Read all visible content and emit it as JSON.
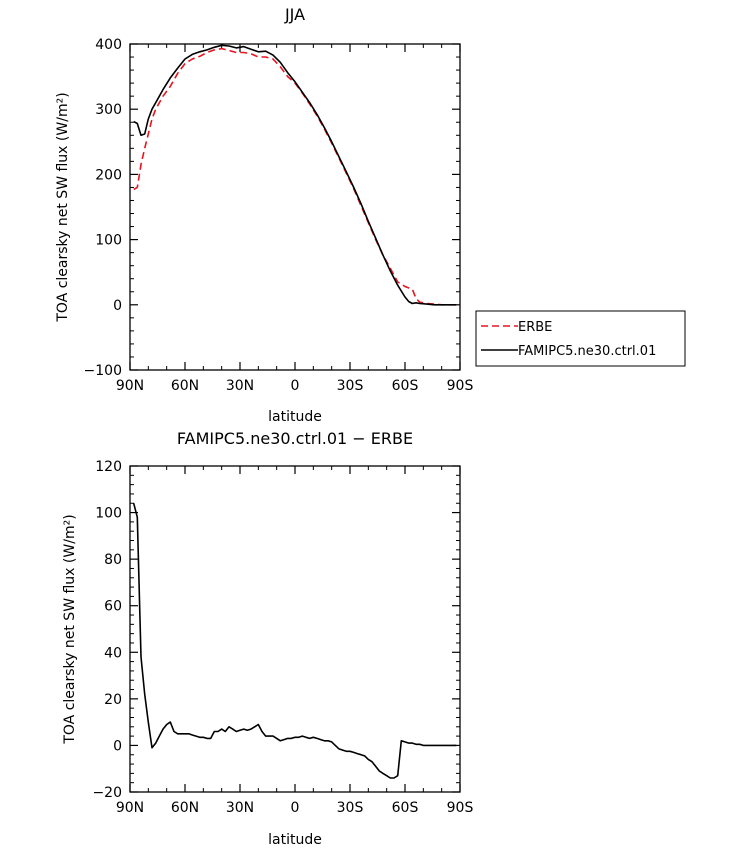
{
  "chart_data": [
    {
      "type": "line",
      "title": "JJA",
      "xlabel": "latitude",
      "ylabel": "TOA clearsky net SW flux (W/m²)",
      "xlim": [
        90,
        -90
      ],
      "ylim": [
        -100,
        400
      ],
      "x_ticks": [
        90,
        60,
        30,
        0,
        -30,
        -60,
        -90
      ],
      "x_tick_labels": [
        "90N",
        "60N",
        "30N",
        "0",
        "30S",
        "60S",
        "90S"
      ],
      "y_ticks": [
        -100,
        0,
        100,
        200,
        300,
        400
      ],
      "y_tick_labels": [
        "−100",
        "0",
        "100",
        "200",
        "300",
        "400"
      ],
      "legend_position": "right",
      "series": [
        {
          "name": "ERBE",
          "color": "#e8141e",
          "dash": "dashed",
          "x": [
            88,
            86,
            84,
            82,
            80,
            78,
            76,
            72,
            68,
            64,
            60,
            56,
            52,
            48,
            44,
            40,
            36,
            32,
            28,
            24,
            20,
            16,
            12,
            8,
            4,
            0,
            -4,
            -8,
            -12,
            -16,
            -20,
            -24,
            -28,
            -32,
            -36,
            -40,
            -44,
            -48,
            -52,
            -56,
            -60,
            -64,
            -66,
            -68,
            -72,
            -76,
            -80,
            -84,
            -88
          ],
          "y": [
            177,
            180,
            215,
            240,
            262,
            285,
            300,
            320,
            335,
            355,
            370,
            377,
            381,
            387,
            391,
            393,
            390,
            387,
            387,
            385,
            380,
            380,
            377,
            365,
            350,
            340,
            325,
            308,
            290,
            270,
            248,
            225,
            202,
            178,
            152,
            126,
            100,
            76,
            56,
            35,
            28,
            24,
            10,
            4,
            2,
            1,
            0,
            0,
            0
          ]
        },
        {
          "name": "FAMIPC5.ne30.ctrl.01",
          "color": "#000000",
          "dash": "solid",
          "x": [
            88,
            86,
            84,
            82,
            80,
            78,
            76,
            72,
            68,
            64,
            60,
            56,
            52,
            48,
            44,
            40,
            36,
            32,
            28,
            24,
            20,
            16,
            12,
            8,
            4,
            0,
            -4,
            -8,
            -12,
            -16,
            -20,
            -24,
            -28,
            -32,
            -36,
            -40,
            -44,
            -48,
            -52,
            -56,
            -60,
            -62,
            -64,
            -66,
            -68,
            -72,
            -76,
            -80,
            -84,
            -88
          ],
          "y": [
            281,
            278,
            260,
            262,
            285,
            300,
            310,
            330,
            348,
            363,
            377,
            384,
            388,
            391,
            395,
            398,
            397,
            394,
            396,
            392,
            388,
            389,
            383,
            372,
            356,
            342,
            326,
            310,
            292,
            272,
            250,
            227,
            204,
            180,
            155,
            128,
            102,
            76,
            52,
            30,
            12,
            5,
            2,
            3,
            2,
            1,
            0,
            0,
            0,
            0
          ]
        }
      ]
    },
    {
      "type": "line",
      "title": "FAMIPC5.ne30.ctrl.01 − ERBE",
      "xlabel": "latitude",
      "ylabel": "TOA clearsky net SW flux (W/m²)",
      "xlim": [
        90,
        -90
      ],
      "ylim": [
        -20,
        120
      ],
      "x_ticks": [
        90,
        60,
        30,
        0,
        -30,
        -60,
        -90
      ],
      "x_tick_labels": [
        "90N",
        "60N",
        "30N",
        "0",
        "30S",
        "60S",
        "90S"
      ],
      "y_ticks": [
        -20,
        0,
        20,
        40,
        60,
        80,
        100,
        120
      ],
      "y_tick_labels": [
        "−20",
        "0",
        "20",
        "40",
        "60",
        "80",
        "100",
        "120"
      ],
      "series": [
        {
          "color": "#000000",
          "dash": "solid",
          "x": [
            88,
            86,
            84,
            82,
            80,
            78,
            76,
            74,
            72,
            70,
            68,
            66,
            64,
            62,
            60,
            58,
            56,
            54,
            52,
            50,
            48,
            46,
            44,
            42,
            40,
            38,
            36,
            34,
            32,
            30,
            28,
            26,
            24,
            22,
            20,
            18,
            16,
            14,
            12,
            10,
            8,
            6,
            4,
            2,
            0,
            -2,
            -4,
            -6,
            -8,
            -10,
            -12,
            -14,
            -16,
            -18,
            -20,
            -22,
            -24,
            -26,
            -28,
            -30,
            -32,
            -34,
            -36,
            -38,
            -40,
            -42,
            -44,
            -46,
            -48,
            -50,
            -52,
            -54,
            -56,
            -58,
            -60,
            -62,
            -64,
            -66,
            -68,
            -70,
            -72,
            -74,
            -76,
            -78,
            -80,
            -82,
            -84,
            -86,
            -88
          ],
          "y": [
            104,
            98,
            38,
            22,
            10,
            -1,
            1,
            4,
            7,
            9,
            10,
            6,
            5,
            5,
            5,
            5,
            4.5,
            4,
            3.5,
            3.5,
            3,
            3,
            6,
            6,
            7,
            6,
            8,
            7,
            6,
            6.5,
            7,
            6.5,
            7,
            8,
            9,
            6,
            4,
            4,
            4,
            3,
            2,
            2.5,
            3,
            3,
            3.5,
            3.5,
            4,
            3.5,
            3,
            3.5,
            3,
            2.5,
            2,
            2,
            1.5,
            0,
            -1.5,
            -2,
            -2.5,
            -2.5,
            -3,
            -3.5,
            -4,
            -4.5,
            -6,
            -7,
            -9,
            -11,
            -12,
            -13,
            -14,
            -14,
            -13,
            2,
            1.5,
            1,
            1,
            0.5,
            0.5,
            0,
            0,
            0,
            0,
            0,
            0,
            0,
            0,
            0,
            0
          ]
        }
      ]
    }
  ]
}
